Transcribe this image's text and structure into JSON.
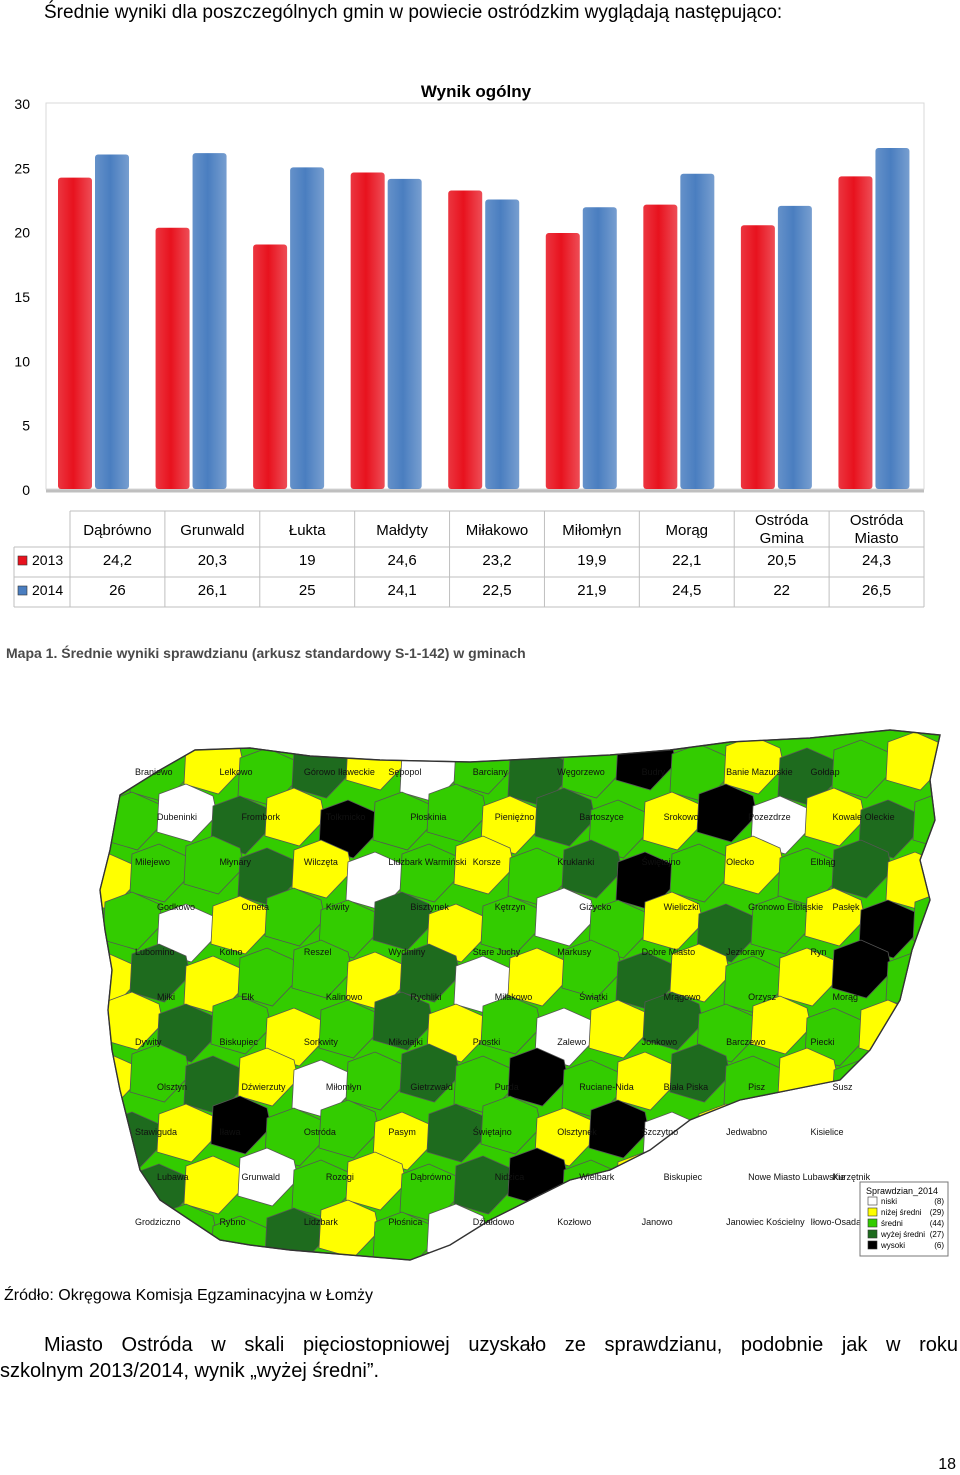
{
  "intro_text": "Średnie wyniki dla poszczególnych gmin w powiecie ostródzkim wyglądają następująco:",
  "chart_data": {
    "type": "bar",
    "title": "Wynik ogólny",
    "categories": [
      "Dąbrówno",
      "Grunwald",
      "Łukta",
      "Małdyty",
      "Miłakowo",
      "Miłomłyn",
      "Morąg",
      "Ostróda Gmina",
      "Ostróda Miasto"
    ],
    "series": [
      {
        "name": "2013",
        "color": "#e8121e",
        "values": [
          24.2,
          20.3,
          19,
          24.6,
          23.2,
          19.9,
          22.1,
          20.5,
          24.3
        ],
        "labels": [
          "24,2",
          "20,3",
          "19",
          "24,6",
          "23,2",
          "19,9",
          "22,1",
          "20,5",
          "24,3"
        ]
      },
      {
        "name": "2014",
        "color": "#4a7ec0",
        "values": [
          26,
          26.1,
          25,
          24.1,
          22.5,
          21.9,
          24.5,
          22,
          26.5
        ],
        "labels": [
          "26",
          "26,1",
          "25",
          "24,1",
          "22,5",
          "21,9",
          "24,5",
          "22",
          "26,5"
        ]
      }
    ],
    "ylim": [
      0,
      30
    ],
    "yticks": [
      "0",
      "5",
      "10",
      "15",
      "20",
      "25",
      "30"
    ],
    "grid": false,
    "data_table": true
  },
  "map": {
    "caption": "Mapa 1. Średnie wyniki sprawdzianu (arkusz standardowy S-1-142) w gminach",
    "labels": [
      "Braniewo",
      "Lelkowo",
      "Górowo Iławeckie",
      "Sępopol",
      "Barciany",
      "Węgorzewo",
      "Budry",
      "Banie Mazurskie",
      "Gołdap",
      "Dubeninki",
      "Frombork",
      "Tolkmicko",
      "Płoskinia",
      "Pieniężno",
      "Bartoszyce",
      "Srokowo",
      "Pozezdrze",
      "Kowale Oleckie",
      "Milejewo",
      "Młynary",
      "Wilczęta",
      "Lidzbark Warmiński",
      "Korsze",
      "Kruklanki",
      "Świętajno",
      "Olecko",
      "Elbląg",
      "Godkowo",
      "Orneta",
      "Kiwity",
      "Bisztynek",
      "Kętrzyn",
      "Giżycko",
      "Wieliczki",
      "Gronowo Elbląskie",
      "Pasłęk",
      "Lubomino",
      "Kolno",
      "Reszel",
      "Wydminy",
      "Stare Juchy",
      "Markusy",
      "Dobre Miasto",
      "Jeziorany",
      "Ryn",
      "Miłki",
      "Ełk",
      "Kalinowo",
      "Rychliki",
      "Miłakowo",
      "Świątki",
      "Mrągowo",
      "Orzysz",
      "Morąg",
      "Dywity",
      "Biskupiec",
      "Sorkwity",
      "Mikołajki",
      "Prostki",
      "Zalewo",
      "Jonkowo",
      "Barczewo",
      "Piecki",
      "Olsztyn",
      "Dźwierzuty",
      "Miłomłyn",
      "Gietrzwałd",
      "Purda",
      "Ruciane-Nida",
      "Biała Piska",
      "Pisz",
      "Susz",
      "Stawiguda",
      "Iława",
      "Ostróda",
      "Pasym",
      "Świętajno",
      "Olsztynek",
      "Szczytno",
      "Jedwabno",
      "Kisielice",
      "Lubawa",
      "Grunwald",
      "Rozogi",
      "Dąbrówno",
      "Nidzica",
      "Wielbark",
      "Biskupiec",
      "Nowe Miasto Lubawskie",
      "Kurzętnik",
      "Grodziczno",
      "Rybno",
      "Lidzbark",
      "Płośnica",
      "Dźiałdowo",
      "Kozłowo",
      "Janowo",
      "Janowiec Kościelny",
      "Iłowo-Osada"
    ],
    "legend": {
      "title": "Sprawdzian_2014",
      "items": [
        {
          "label": "niski",
          "count": "(8)",
          "color": "#ffffff"
        },
        {
          "label": "niżej średni",
          "count": "(29)",
          "color": "#ffff00"
        },
        {
          "label": "średni",
          "count": "(44)",
          "color": "#33cc00"
        },
        {
          "label": "wyżej średni",
          "count": "(27)",
          "color": "#1e6b1e"
        },
        {
          "label": "wysoki",
          "count": "(6)",
          "color": "#000000"
        }
      ]
    }
  },
  "source_text": "Źródło: Okręgowa  Komisja Egzaminacyjna w Łomży",
  "paragraph": {
    "line1": "Miasto Ostróda w skali pięciostopniowej uzyskało ze sprawdzianu, podobnie jak w roku",
    "line2": "szkolnym 2013/2014, wynik „wyżej średni”."
  },
  "page_number": "18"
}
